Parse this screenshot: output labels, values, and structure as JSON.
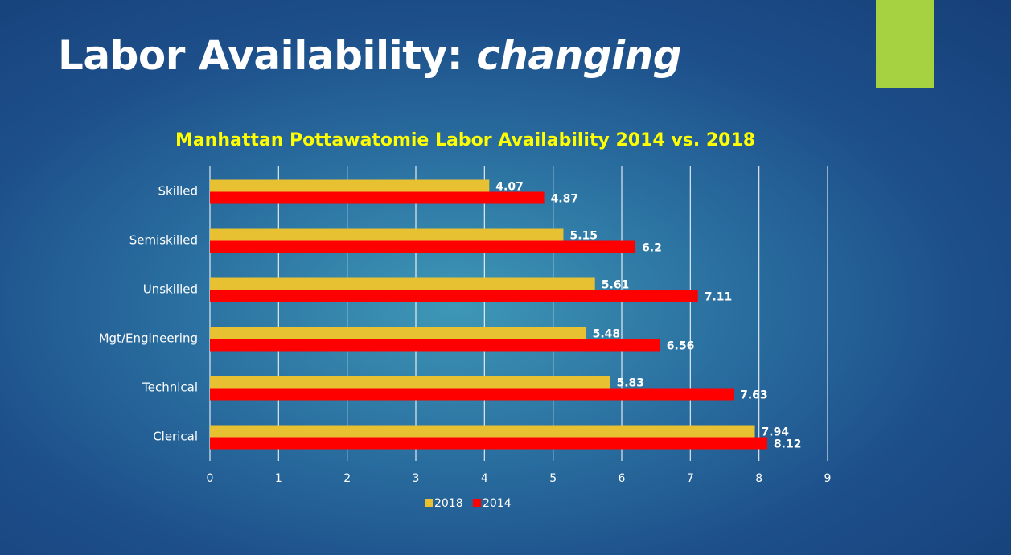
{
  "slide": {
    "title_main": "Labor Availability: ",
    "title_emphasis": "changing",
    "accent_color": "#a6d141",
    "title_color": "#ffffff"
  },
  "chart_data": {
    "type": "bar",
    "orientation": "horizontal",
    "title": "Manhattan Pottawatomie Labor Availability 2014 vs. 2018",
    "title_color": "#ffff00",
    "categories": [
      "Skilled",
      "Semiskilled",
      "Unskilled",
      "Mgt/Engineering",
      "Technical",
      "Clerical"
    ],
    "series": [
      {
        "name": "2018",
        "color": "#e8c132",
        "values": [
          4.07,
          5.15,
          5.61,
          5.48,
          5.83,
          7.94
        ]
      },
      {
        "name": "2014",
        "color": "#ff0000",
        "values": [
          4.87,
          6.2,
          7.11,
          6.56,
          7.63,
          8.12
        ]
      }
    ],
    "xlim": [
      0,
      9
    ],
    "xticks": [
      0,
      1,
      2,
      3,
      4,
      5,
      6,
      7,
      8,
      9
    ],
    "grid": true,
    "data_labels": true,
    "legend": "bottom"
  }
}
